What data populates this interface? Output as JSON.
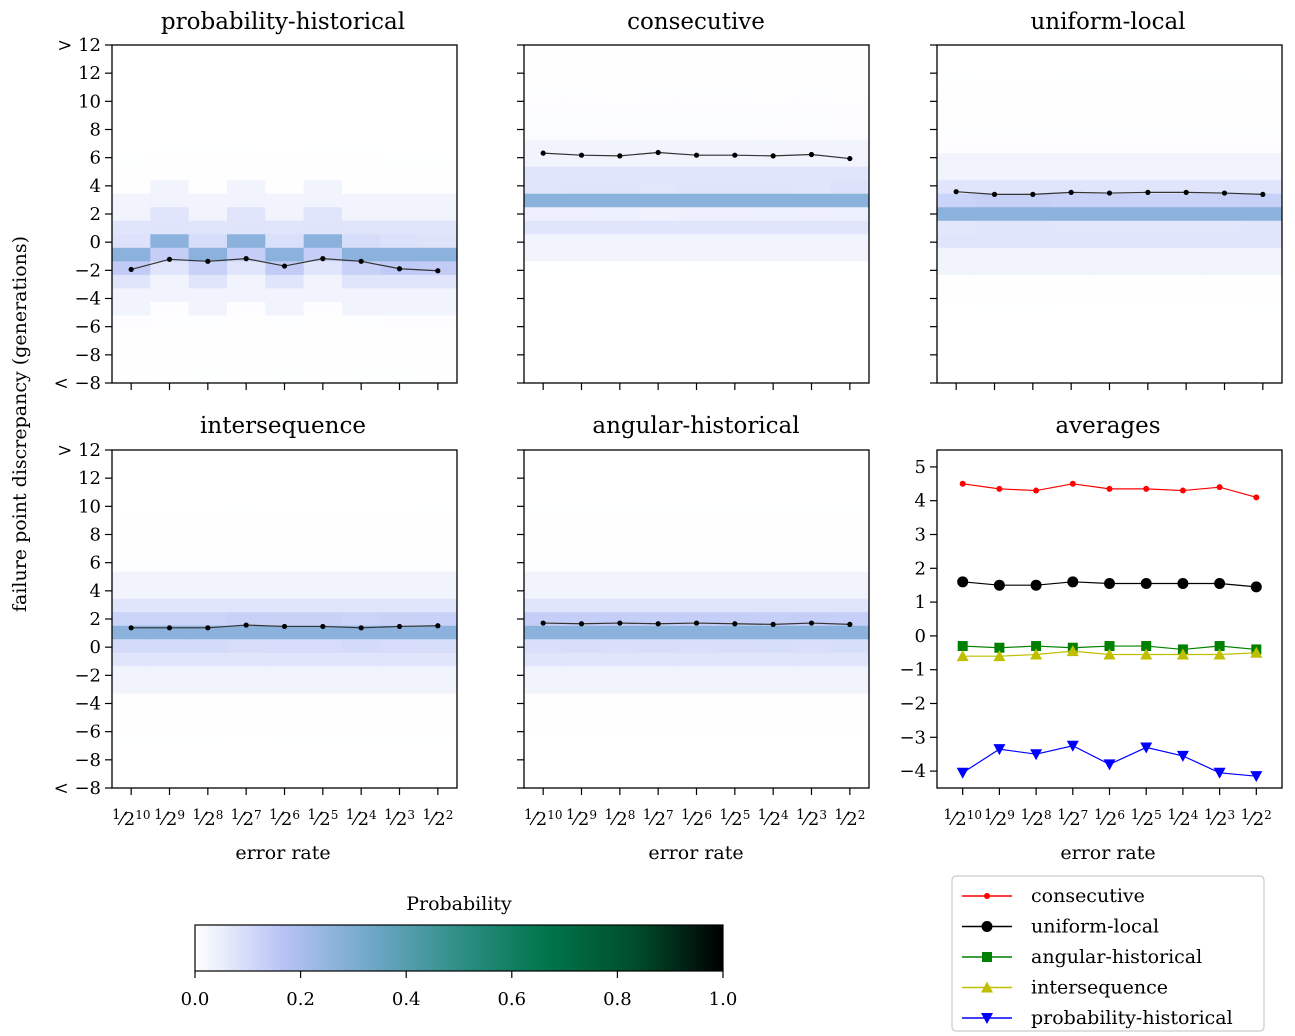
{
  "colorbar": {
    "label": "Probability",
    "ticks": [
      "0.0",
      "0.2",
      "0.4",
      "0.6",
      "0.8",
      "1.0"
    ],
    "stops": [
      "#ffffff",
      "#b8c3f5",
      "#6fa8c8",
      "#2e8f86",
      "#00754a",
      "#004d2c",
      "#000000"
    ]
  },
  "y_axis_label": "failure point discrepancy (generations)",
  "x_axis_label": "error rate",
  "x_tick_labels": [
    "1/210",
    "1/29",
    "1/28",
    "1/27",
    "1/26",
    "1/25",
    "1/24",
    "1/23",
    "1/22"
  ],
  "heatmap_y_ticks": [
    "> 12",
    "12",
    "10",
    "8",
    "6",
    "4",
    "2",
    "0",
    "−2",
    "−4",
    "−6",
    "−8",
    "< −8"
  ],
  "averages_y_ticks": [
    "5",
    "4",
    "3",
    "2",
    "1",
    "0",
    "−1",
    "−2",
    "−3",
    "−4"
  ],
  "panels": {
    "probability_historical": {
      "title": "probability-historical"
    },
    "consecutive": {
      "title": "consecutive"
    },
    "uniform_local": {
      "title": "uniform-local"
    },
    "intersequence": {
      "title": "intersequence"
    },
    "angular_historical": {
      "title": "angular-historical"
    },
    "averages": {
      "title": "averages"
    }
  },
  "legend": [
    {
      "label": "consecutive",
      "color": "#ff0000",
      "marker": "dot-small"
    },
    {
      "label": "uniform-local",
      "color": "#000000",
      "marker": "dot"
    },
    {
      "label": "angular-historical",
      "color": "#008000",
      "marker": "square"
    },
    {
      "label": "intersequence",
      "color": "#bfbf00",
      "marker": "triangle-up"
    },
    {
      "label": "probability-historical",
      "color": "#0000ff",
      "marker": "triangle-down"
    }
  ],
  "chart_data": [
    {
      "type": "heatmap",
      "title": "probability-historical",
      "x": [
        "1/2^10",
        "1/2^9",
        "1/2^8",
        "1/2^7",
        "1/2^6",
        "1/2^5",
        "1/2^4",
        "1/2^3",
        "1/2^2"
      ],
      "mean_line": [
        -4.1,
        -3.35,
        -3.5,
        -3.3,
        -3.85,
        -3.3,
        -3.5,
        -4.05,
        -4.2
      ],
      "mode_bins": [
        -3,
        -2,
        -3,
        -2,
        -3,
        -2,
        -3,
        -3,
        -3
      ]
    },
    {
      "type": "heatmap",
      "title": "consecutive",
      "x": [
        "1/2^10",
        "1/2^9",
        "1/2^8",
        "1/2^7",
        "1/2^6",
        "1/2^5",
        "1/2^4",
        "1/2^3",
        "1/2^2"
      ],
      "mean_line": [
        4.5,
        4.35,
        4.3,
        4.55,
        4.35,
        4.35,
        4.3,
        4.4,
        4.1
      ],
      "mode_bins": [
        1,
        1,
        1,
        1,
        1,
        1,
        1,
        1,
        1
      ]
    },
    {
      "type": "heatmap",
      "title": "uniform-local",
      "x": [
        "1/2^10",
        "1/2^9",
        "1/2^8",
        "1/2^7",
        "1/2^6",
        "1/2^5",
        "1/2^4",
        "1/2^3",
        "1/2^2"
      ],
      "mean_line": [
        1.65,
        1.45,
        1.45,
        1.6,
        1.55,
        1.6,
        1.6,
        1.55,
        1.45
      ],
      "mode_bins": [
        0,
        0,
        0,
        0,
        0,
        0,
        0,
        0,
        0
      ]
    },
    {
      "type": "heatmap",
      "title": "intersequence",
      "x": [
        "1/2^10",
        "1/2^9",
        "1/2^8",
        "1/2^7",
        "1/2^6",
        "1/2^5",
        "1/2^4",
        "1/2^3",
        "1/2^2"
      ],
      "mean_line": [
        -0.65,
        -0.65,
        -0.65,
        -0.45,
        -0.55,
        -0.55,
        -0.65,
        -0.55,
        -0.5
      ],
      "mode_bins": [
        -1,
        -1,
        -1,
        -1,
        -1,
        -1,
        -1,
        -1,
        -1
      ]
    },
    {
      "type": "heatmap",
      "title": "angular-historical",
      "x": [
        "1/2^10",
        "1/2^9",
        "1/2^8",
        "1/2^7",
        "1/2^6",
        "1/2^5",
        "1/2^4",
        "1/2^3",
        "1/2^2"
      ],
      "mean_line": [
        -0.3,
        -0.35,
        -0.3,
        -0.35,
        -0.3,
        -0.35,
        -0.4,
        -0.3,
        -0.4
      ],
      "mode_bins": [
        -1,
        -1,
        -1,
        -1,
        -1,
        -1,
        -1,
        -1,
        -1
      ]
    },
    {
      "type": "line",
      "title": "averages",
      "x": [
        "1/2^10",
        "1/2^9",
        "1/2^8",
        "1/2^7",
        "1/2^6",
        "1/2^5",
        "1/2^4",
        "1/2^3",
        "1/2^2"
      ],
      "ylim": [
        -4.5,
        5.5
      ],
      "series": [
        {
          "name": "consecutive",
          "values": [
            4.5,
            4.35,
            4.3,
            4.5,
            4.35,
            4.35,
            4.3,
            4.4,
            4.1
          ]
        },
        {
          "name": "uniform-local",
          "values": [
            1.6,
            1.5,
            1.5,
            1.6,
            1.55,
            1.55,
            1.55,
            1.55,
            1.45
          ]
        },
        {
          "name": "angular-historical",
          "values": [
            -0.3,
            -0.35,
            -0.3,
            -0.35,
            -0.3,
            -0.3,
            -0.4,
            -0.3,
            -0.4
          ]
        },
        {
          "name": "intersequence",
          "values": [
            -0.6,
            -0.6,
            -0.55,
            -0.45,
            -0.55,
            -0.55,
            -0.55,
            -0.55,
            -0.5
          ]
        },
        {
          "name": "probability-historical",
          "values": [
            -4.05,
            -3.35,
            -3.5,
            -3.25,
            -3.8,
            -3.3,
            -3.55,
            -4.05,
            -4.15
          ]
        }
      ]
    }
  ]
}
